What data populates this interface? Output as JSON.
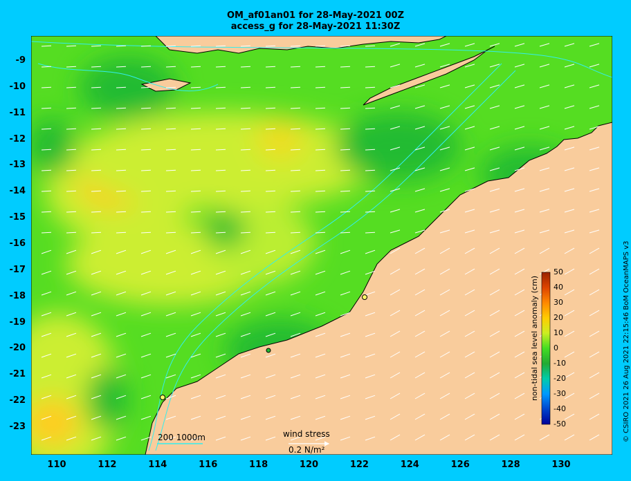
{
  "title_line1": "OM_af01an01 for 28-May-2021 00Z",
  "title_line2": "access_g for 28-May-2021 11:30Z",
  "lat_labels": [
    "-9",
    "-10",
    "-11",
    "-12",
    "-13",
    "-14",
    "-15",
    "-16",
    "-17",
    "-18",
    "-19",
    "-20",
    "-21",
    "-22",
    "-23"
  ],
  "lon_labels": [
    "110",
    "112",
    "114",
    "116",
    "118",
    "120",
    "122",
    "124",
    "126",
    "128",
    "130"
  ],
  "colorbar": {
    "title": "non-tidal sea level anomaly (cm)",
    "ticks": [
      "50",
      "40",
      "30",
      "20",
      "10",
      "0",
      "-10",
      "-20",
      "-30",
      "-40",
      "-50"
    ]
  },
  "bathymetry_legend": "200  1000m",
  "wind_legend": {
    "label": "wind stress",
    "value": "0.2 N/m²"
  },
  "credit": "© CSIRO 2021  26 Aug 2021 22:15:46 BoM OceanMAPS v3",
  "colors": {
    "background": "#00ccff",
    "land": "#f9cc9c",
    "sea_green": "#44dd22",
    "sea_yellow": "#ddee33"
  }
}
